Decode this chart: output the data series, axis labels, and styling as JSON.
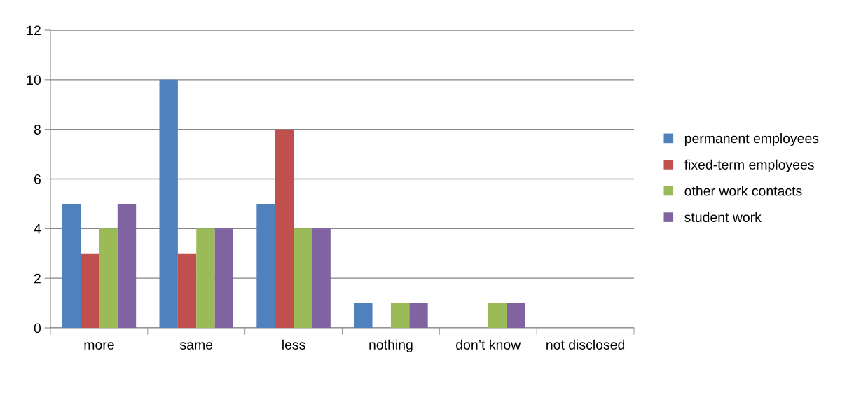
{
  "chart_data": {
    "type": "bar",
    "categories": [
      "more",
      "same",
      "less",
      "nothing",
      "don’t know",
      "not disclosed"
    ],
    "series": [
      {
        "name": "permanent employees",
        "color": "#4f81bd",
        "values": [
          5,
          10,
          5,
          1,
          0,
          0
        ]
      },
      {
        "name": "fixed-term employees",
        "color": "#c0504d",
        "values": [
          3,
          3,
          8,
          0,
          0,
          0
        ]
      },
      {
        "name": "other work contacts",
        "color": "#9bbb59",
        "values": [
          4,
          4,
          4,
          1,
          1,
          0
        ]
      },
      {
        "name": "student work",
        "color": "#8064a2",
        "values": [
          5,
          4,
          4,
          1,
          1,
          0
        ]
      }
    ],
    "ylim": [
      0,
      12
    ],
    "yticks": [
      0,
      2,
      4,
      6,
      8,
      10,
      12
    ],
    "grid": "y",
    "legend": "right"
  }
}
